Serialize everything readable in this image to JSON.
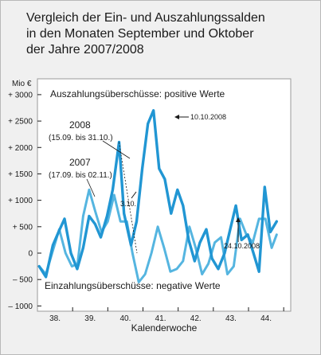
{
  "chart_data": {
    "type": "line",
    "title_lines": [
      "Vergleich der Ein- und Auszahlungssalden",
      "in den Monaten September und Oktober",
      "der Jahre 2007/2008"
    ],
    "ylabel": "Mio €",
    "xlabel": "Kalenderwoche",
    "ylim": [
      -1100,
      3300
    ],
    "yticks": [
      -1000,
      -500,
      0,
      500,
      1000,
      1500,
      2000,
      2500,
      3000
    ],
    "ytick_labels": [
      "– 1000",
      "– 500",
      "0",
      "+ 500",
      "+ 1000",
      "+ 1500",
      "+ 2000",
      "+ 2500",
      "+ 3000"
    ],
    "xlim": [
      37.5,
      44.7
    ],
    "categories": [
      "38.",
      "39.",
      "40.",
      "41.",
      "42.",
      "43.",
      "44."
    ],
    "category_positions": [
      38,
      39,
      40,
      41,
      42,
      43,
      44
    ],
    "grid": false,
    "annotation_top": "Auszahlungsüberschüsse: positive Werte",
    "annotation_bottom": "Einzahlungsüberschüsse: negative Werte",
    "series": [
      {
        "name": "2008",
        "subtitle": "(15.09. bis 31.10.)",
        "color": "#2196d3",
        "x": [
          37.55,
          37.74,
          37.94,
          38.1,
          38.27,
          38.45,
          38.63,
          38.8,
          38.97,
          39.14,
          39.3,
          39.48,
          39.64,
          39.82,
          39.96,
          40.16,
          40.32,
          40.48,
          40.64,
          40.8,
          40.96,
          41.12,
          41.3,
          41.48,
          41.64,
          41.8,
          41.97,
          42.12,
          42.3,
          42.46,
          42.64,
          42.82,
          42.98,
          43.14,
          43.3,
          43.48,
          43.64,
          43.8,
          43.96,
          44.12,
          44.3
        ],
        "y": [
          -250,
          -450,
          150,
          400,
          650,
          0,
          -300,
          100,
          700,
          550,
          300,
          700,
          1200,
          2100,
          750,
          150,
          600,
          1600,
          2450,
          2700,
          1600,
          1400,
          750,
          1200,
          900,
          250,
          -150,
          200,
          450,
          -100,
          -300,
          0,
          450,
          900,
          250,
          350,
          0,
          -350,
          1250,
          400,
          600
        ],
        "end_labels": [
          "31.10."
        ]
      },
      {
        "name": "2007",
        "subtitle": "(17.09. bis 02.11.)",
        "color": "#55b5e0",
        "x": [
          37.55,
          37.74,
          37.94,
          38.12,
          38.3,
          38.48,
          38.64,
          38.8,
          38.97,
          39.14,
          39.32,
          39.5,
          39.68,
          39.86,
          40.04,
          40.2,
          40.38,
          40.56,
          40.74,
          40.92,
          41.1,
          41.28,
          41.46,
          41.64,
          41.82,
          42.0,
          42.18,
          42.36,
          42.54,
          42.72,
          42.9,
          43.08,
          43.26,
          43.44,
          43.62,
          43.8,
          43.98,
          44.16,
          44.3
        ],
        "y": [
          -250,
          -400,
          50,
          450,
          0,
          -250,
          -200,
          700,
          1200,
          800,
          400,
          600,
          1100,
          600,
          600,
          0,
          -550,
          -400,
          0,
          500,
          100,
          -350,
          -300,
          -150,
          500,
          100,
          -400,
          -200,
          200,
          300,
          -400,
          -250,
          650,
          350,
          200,
          650,
          650,
          100,
          350
        ]
      }
    ],
    "callouts": {
      "peak_2008": "10.10.2008",
      "dip_2008": "24.10.2008",
      "small_2008": "3.10."
    }
  }
}
